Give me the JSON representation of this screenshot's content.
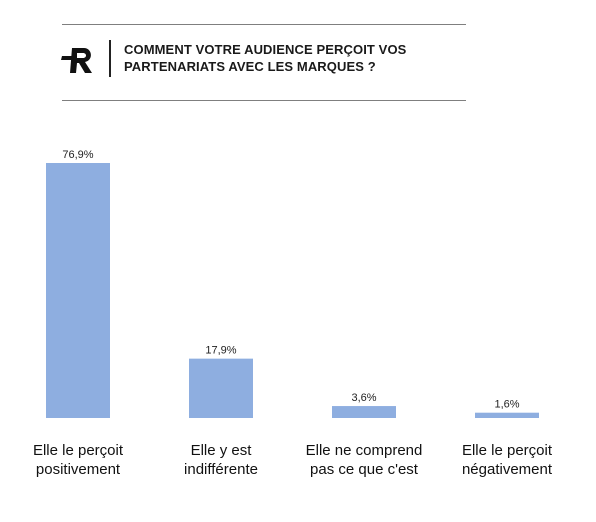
{
  "header": {
    "title_line1": "COMMENT VOTRE AUDIENCE PERÇOIT VOS",
    "title_line2": "PARTENARIATS AVEC LES MARQUES ?",
    "logo_icon": "r-logo-icon"
  },
  "colors": {
    "bar": "#8eaee0",
    "text": "#111111",
    "rule": "#7f7f7f"
  },
  "chart_data": {
    "type": "bar",
    "categories": [
      [
        "Elle le perçoit",
        "positivement"
      ],
      [
        "Elle y est",
        "indifférente"
      ],
      [
        "Elle ne comprend",
        "pas ce que c'est"
      ],
      [
        "Elle le perçoit",
        "négativement"
      ]
    ],
    "values": [
      76.9,
      17.9,
      3.6,
      1.6
    ],
    "value_labels": [
      "76,9%",
      "17,9%",
      "3,6%",
      "1,6%"
    ],
    "unit": "%",
    "ylim": [
      0,
      76.9
    ],
    "grid": false,
    "legend": "none"
  }
}
